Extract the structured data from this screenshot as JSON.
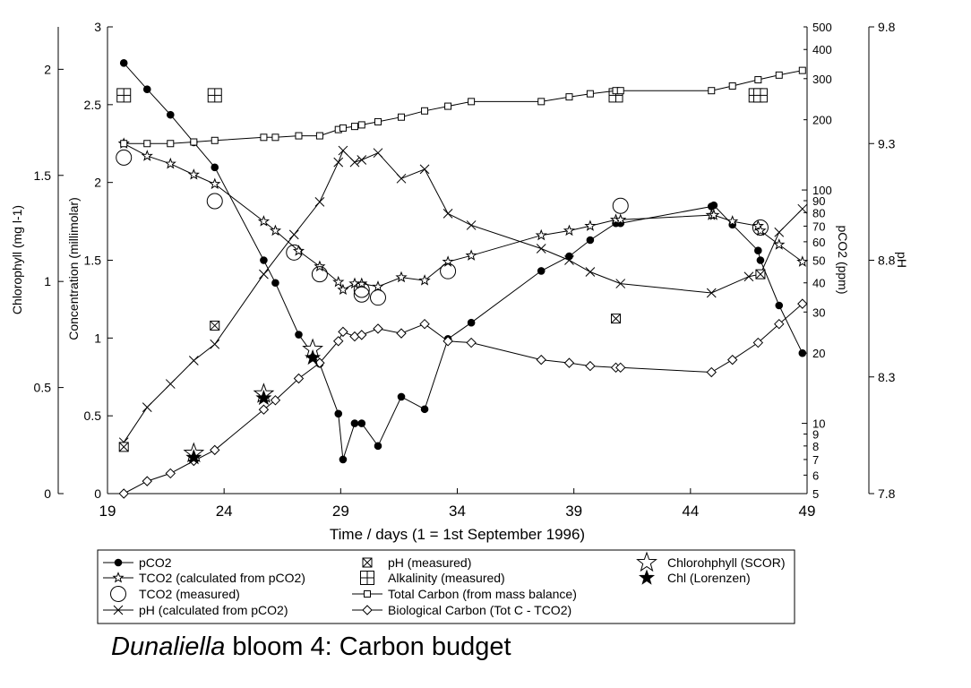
{
  "chart_data": {
    "type": "line",
    "caption": {
      "italic": "Dunaliella",
      "rest": " bloom 4: Carbon budget"
    },
    "xlabel": "Time / days (1 = 1st September 1996)",
    "xlim": [
      19,
      49
    ],
    "xticks": [
      19,
      24,
      29,
      34,
      39,
      44,
      49
    ],
    "axes": {
      "chlorophyll": {
        "label": "Chlorophyll (mg l-1)",
        "lim": [
          0,
          2.2
        ],
        "ticks": [
          0,
          0.5,
          1,
          1.5,
          2
        ],
        "tick_labels": [
          "0",
          "0.5",
          "1",
          "1.5",
          "2"
        ]
      },
      "concentration": {
        "label": "Concentration (millimolar)",
        "lim": [
          0,
          3
        ],
        "ticks": [
          0,
          0.5,
          1,
          1.5,
          2,
          2.5,
          3
        ],
        "tick_labels": [
          "0",
          "0.5",
          "1",
          "1.5",
          "2",
          "2.5",
          "3"
        ]
      },
      "pco2": {
        "label": "pCO2 (ppm)",
        "scale": "log",
        "lim": [
          5,
          500
        ],
        "ticks": [
          5,
          6,
          7,
          8,
          9,
          10,
          20,
          30,
          40,
          50,
          60,
          70,
          80,
          90,
          100,
          200,
          300,
          400,
          500
        ],
        "tick_labels": [
          "5",
          "6",
          "7",
          "8",
          "9",
          "10",
          "20",
          "30",
          "40",
          "50",
          "60",
          "70",
          "80",
          "90",
          "100",
          "200",
          "300",
          "400",
          "500"
        ]
      },
      "ph": {
        "label": "pH",
        "lim": [
          7.8,
          9.8
        ],
        "ticks": [
          7.8,
          8.3,
          8.8,
          9.3,
          9.8
        ],
        "tick_labels": [
          "7.8",
          "8.3",
          "8.8",
          "9.3",
          "9.8"
        ]
      }
    },
    "series": [
      {
        "name": "pCO2",
        "axis": "pco2",
        "marker": "filled-circle",
        "line": true,
        "x": [
          19.7,
          20.7,
          21.7,
          22.7,
          23.6,
          25.7,
          26.2,
          27.2,
          28.1,
          28.9,
          29.1,
          29.6,
          29.9,
          30.6,
          31.6,
          32.6,
          33.6,
          34.6,
          37.6,
          38.8,
          39.7,
          40.8,
          41.0,
          44.9,
          45.0,
          45.8,
          46.9,
          47.0,
          47.8,
          48.8
        ],
        "y": [
          350,
          270,
          210,
          160,
          125,
          50,
          40,
          24,
          18,
          11,
          7,
          10,
          10,
          8,
          13,
          11.5,
          23,
          27,
          45,
          52,
          61,
          72,
          72,
          85,
          86,
          71,
          55,
          50,
          32,
          20
        ]
      },
      {
        "name": "TCO2 (calculated from pCO2)",
        "axis": "concentration",
        "marker": "star",
        "line": true,
        "x": [
          19.7,
          20.7,
          21.7,
          22.7,
          23.6,
          25.7,
          26.2,
          27.2,
          28.1,
          28.9,
          29.1,
          29.6,
          29.9,
          30.6,
          31.6,
          32.6,
          33.6,
          34.6,
          37.6,
          38.8,
          39.7,
          40.8,
          41.0,
          44.9,
          45.0,
          45.8,
          46.9,
          47.0,
          47.8,
          48.8
        ],
        "y": [
          2.25,
          2.17,
          2.12,
          2.05,
          1.99,
          1.75,
          1.69,
          1.56,
          1.46,
          1.36,
          1.31,
          1.35,
          1.35,
          1.33,
          1.39,
          1.37,
          1.49,
          1.53,
          1.66,
          1.69,
          1.72,
          1.76,
          1.76,
          1.79,
          1.79,
          1.75,
          1.72,
          1.69,
          1.6,
          1.49
        ]
      },
      {
        "name": "TCO2 (measured)",
        "axis": "concentration",
        "marker": "open-circle",
        "line": false,
        "x": [
          19.7,
          23.6,
          27.0,
          28.1,
          29.9,
          29.9,
          30.6,
          33.6,
          41.0,
          47.0
        ],
        "y": [
          2.16,
          1.88,
          1.55,
          1.41,
          1.31,
          1.28,
          1.26,
          1.43,
          1.85,
          1.71
        ]
      },
      {
        "name": "pH (calculated from pCO2)",
        "axis": "ph",
        "marker": "x",
        "line": true,
        "x": [
          19.7,
          20.7,
          21.7,
          22.7,
          23.6,
          25.7,
          27.0,
          28.1,
          28.9,
          29.1,
          29.6,
          29.9,
          30.6,
          31.6,
          32.6,
          33.6,
          34.6,
          37.6,
          38.8,
          39.7,
          41.0,
          44.9,
          46.5,
          47.0,
          47.8,
          48.8
        ],
        "y": [
          8.02,
          8.17,
          8.27,
          8.37,
          8.44,
          8.74,
          8.91,
          9.05,
          9.22,
          9.27,
          9.22,
          9.23,
          9.26,
          9.15,
          9.19,
          9.0,
          8.95,
          8.85,
          8.8,
          8.75,
          8.7,
          8.66,
          8.73,
          8.74,
          8.92,
          9.02
        ]
      },
      {
        "name": "pH (measured)",
        "axis": "ph",
        "marker": "boxed-x",
        "line": false,
        "x": [
          19.7,
          23.6,
          40.8,
          47.0
        ],
        "y": [
          8.0,
          8.52,
          8.55,
          8.74
        ]
      },
      {
        "name": "Alkalinity (measured)",
        "axis": "concentration",
        "marker": "boxed-plus",
        "line": false,
        "x": [
          19.7,
          23.6,
          40.8,
          46.8,
          47.0
        ],
        "y": [
          2.56,
          2.56,
          2.56,
          2.56,
          2.56
        ]
      },
      {
        "name": "Total Carbon (from mass balance)",
        "axis": "concentration",
        "marker": "open-square",
        "line": true,
        "x": [
          19.7,
          20.7,
          21.7,
          22.7,
          23.6,
          25.7,
          26.2,
          27.2,
          28.1,
          28.9,
          29.1,
          29.6,
          29.9,
          30.6,
          31.6,
          32.6,
          33.6,
          34.6,
          37.6,
          38.8,
          39.7,
          40.8,
          41.0,
          44.9,
          45.8,
          46.9,
          47.8,
          48.8
        ],
        "y": [
          2.25,
          2.25,
          2.25,
          2.26,
          2.27,
          2.29,
          2.29,
          2.3,
          2.3,
          2.34,
          2.35,
          2.36,
          2.37,
          2.39,
          2.42,
          2.46,
          2.49,
          2.52,
          2.52,
          2.55,
          2.57,
          2.59,
          2.59,
          2.59,
          2.62,
          2.66,
          2.69,
          2.72
        ]
      },
      {
        "name": "Biological Carbon (Tot C - TCO2)",
        "axis": "concentration",
        "marker": "open-diamond",
        "line": true,
        "x": [
          19.7,
          20.7,
          21.7,
          22.7,
          23.6,
          25.7,
          26.2,
          27.2,
          28.1,
          28.9,
          29.1,
          29.6,
          29.9,
          30.6,
          31.6,
          32.6,
          33.6,
          34.6,
          37.6,
          38.8,
          39.7,
          40.8,
          41.0,
          44.9,
          45.8,
          46.9,
          47.8,
          48.8
        ],
        "y": [
          0.0,
          0.08,
          0.13,
          0.21,
          0.28,
          0.54,
          0.6,
          0.74,
          0.84,
          0.98,
          1.04,
          1.01,
          1.02,
          1.06,
          1.03,
          1.09,
          0.98,
          0.97,
          0.86,
          0.84,
          0.82,
          0.81,
          0.81,
          0.78,
          0.86,
          0.97,
          1.09,
          1.22
        ]
      },
      {
        "name": "Chlorohphyll (SCOR)",
        "axis": "chlorophyll",
        "marker": "open-star",
        "line": false,
        "x": [
          22.7,
          25.7,
          27.8
        ],
        "y": [
          0.19,
          0.47,
          0.68
        ]
      },
      {
        "name": "Chl (Lorenzen)",
        "axis": "chlorophyll",
        "marker": "filled-star",
        "line": false,
        "x": [
          22.7,
          25.7,
          27.8
        ],
        "y": [
          0.17,
          0.45,
          0.64
        ]
      }
    ],
    "legend_columns": [
      [
        "pCO2",
        "TCO2 (calculated from pCO2)",
        "TCO2 (measured)",
        "pH (calculated from pCO2)"
      ],
      [
        "pH (measured)",
        "Alkalinity (measured)",
        "Total Carbon (from mass balance)",
        "Biological Carbon (Tot C - TCO2)"
      ],
      [
        "Chlorohphyll (SCOR)",
        "Chl (Lorenzen)"
      ]
    ],
    "legend_placement": "bottom",
    "grid": false
  }
}
